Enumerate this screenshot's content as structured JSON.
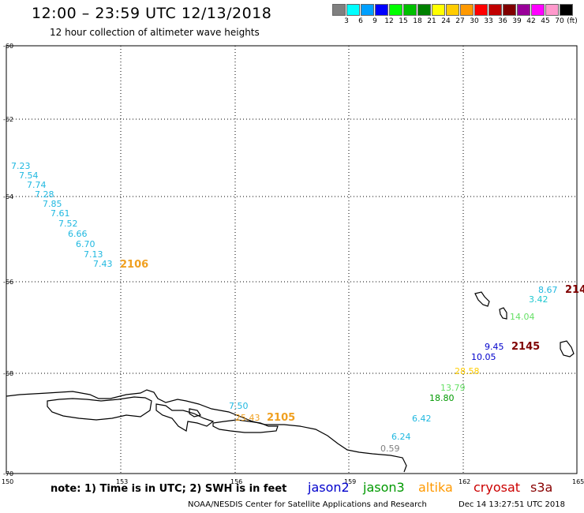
{
  "header": {
    "title": "12:00 – 23:59 UTC 12/13/2018",
    "subtitle": "12 hour collection of altimeter wave heights"
  },
  "legend": {
    "unit": "(ft)",
    "colors": [
      "#808080",
      "#00ffff",
      "#00a0ff",
      "#0000ff",
      "#00ff00",
      "#00c000",
      "#008000",
      "#ffff00",
      "#ffcc00",
      "#ff9900",
      "#ff0000",
      "#c00000",
      "#800000",
      "#990099",
      "#ff00ff",
      "#ff99cc",
      "#000000"
    ],
    "labels": [
      "3",
      "6",
      "9",
      "12",
      "15",
      "18",
      "21",
      "24",
      "27",
      "30",
      "33",
      "36",
      "39",
      "42",
      "45",
      "70"
    ]
  },
  "axes": {
    "lat_labels": [
      "-60",
      "-62",
      "-64",
      "-66",
      "-68",
      "-70"
    ],
    "lon_labels": [
      "150",
      "153",
      "156",
      "159",
      "162",
      "165"
    ]
  },
  "tracks": {
    "t2106": {
      "label": "2106",
      "color": "#f0a020",
      "values": [
        "7.23",
        "7.54",
        "7.74",
        "7.28",
        "7.85",
        "7.61",
        "7.52",
        "6.66",
        "6.70",
        "7.13",
        "7.43"
      ]
    },
    "t2105": {
      "label": "2105",
      "color": "#f0a020",
      "values": [
        "7.50",
        "25.43"
      ]
    },
    "t2145": {
      "label": "2145",
      "color": "#800000",
      "values": [
        "0.59",
        "6.24",
        "6.42",
        "18.80",
        "13.79",
        "28.58",
        "10.05",
        "9.45",
        "14.04",
        "3.42",
        "8.67"
      ]
    },
    "t214": {
      "label": "214",
      "color": "#800000"
    }
  },
  "satellites": [
    {
      "name": "jason2",
      "color": "#0000cc"
    },
    {
      "name": "jason3",
      "color": "#009900"
    },
    {
      "name": "altika",
      "color": "#ff9900"
    },
    {
      "name": "cryosat",
      "color": "#cc0000"
    },
    {
      "name": "s3a",
      "color": "#880000"
    }
  ],
  "footer": {
    "note": "note: 1) Time is in UTC; 2) SWH is in feet",
    "credit": "NOAA/NESDIS Center for Satellite Applications and Research",
    "timestamp": "Dec 14 13:27:51 UTC 2018"
  }
}
